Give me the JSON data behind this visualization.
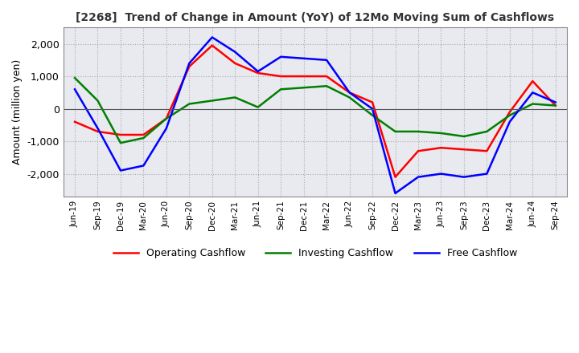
{
  "title": "[2268]  Trend of Change in Amount (YoY) of 12Mo Moving Sum of Cashflows",
  "ylabel": "Amount (million yen)",
  "ylim": [
    -2700,
    2500
  ],
  "yticks": [
    -2000,
    -1000,
    0,
    1000,
    2000
  ],
  "x_labels": [
    "Jun-19",
    "Sep-19",
    "Dec-19",
    "Mar-20",
    "Jun-20",
    "Sep-20",
    "Dec-20",
    "Mar-21",
    "Jun-21",
    "Sep-21",
    "Dec-21",
    "Mar-22",
    "Jun-22",
    "Sep-22",
    "Dec-22",
    "Mar-23",
    "Jun-23",
    "Sep-23",
    "Dec-23",
    "Mar-24",
    "Jun-24",
    "Sep-24"
  ],
  "operating": [
    -400,
    -700,
    -800,
    -800,
    -300,
    1300,
    1950,
    1400,
    1100,
    1000,
    1000,
    1000,
    500,
    200,
    -2100,
    -1300,
    -1200,
    -1250,
    -1300,
    -100,
    850,
    100
  ],
  "investing": [
    950,
    250,
    -1050,
    -900,
    -300,
    150,
    250,
    350,
    50,
    600,
    650,
    700,
    350,
    -200,
    -700,
    -700,
    -750,
    -850,
    -700,
    -200,
    150,
    100
  ],
  "free": [
    600,
    -600,
    -1900,
    -1750,
    -600,
    1400,
    2200,
    1750,
    1150,
    1600,
    1550,
    1500,
    500,
    0,
    -2600,
    -2100,
    -2000,
    -2100,
    -2000,
    -400,
    500,
    200
  ],
  "op_color": "#ff0000",
  "inv_color": "#008000",
  "free_color": "#0000ff",
  "legend_labels": [
    "Operating Cashflow",
    "Investing Cashflow",
    "Free Cashflow"
  ],
  "background_color": "#ffffff",
  "plot_bg_color": "#e8eaf0",
  "grid_color": "#aaaaaa"
}
